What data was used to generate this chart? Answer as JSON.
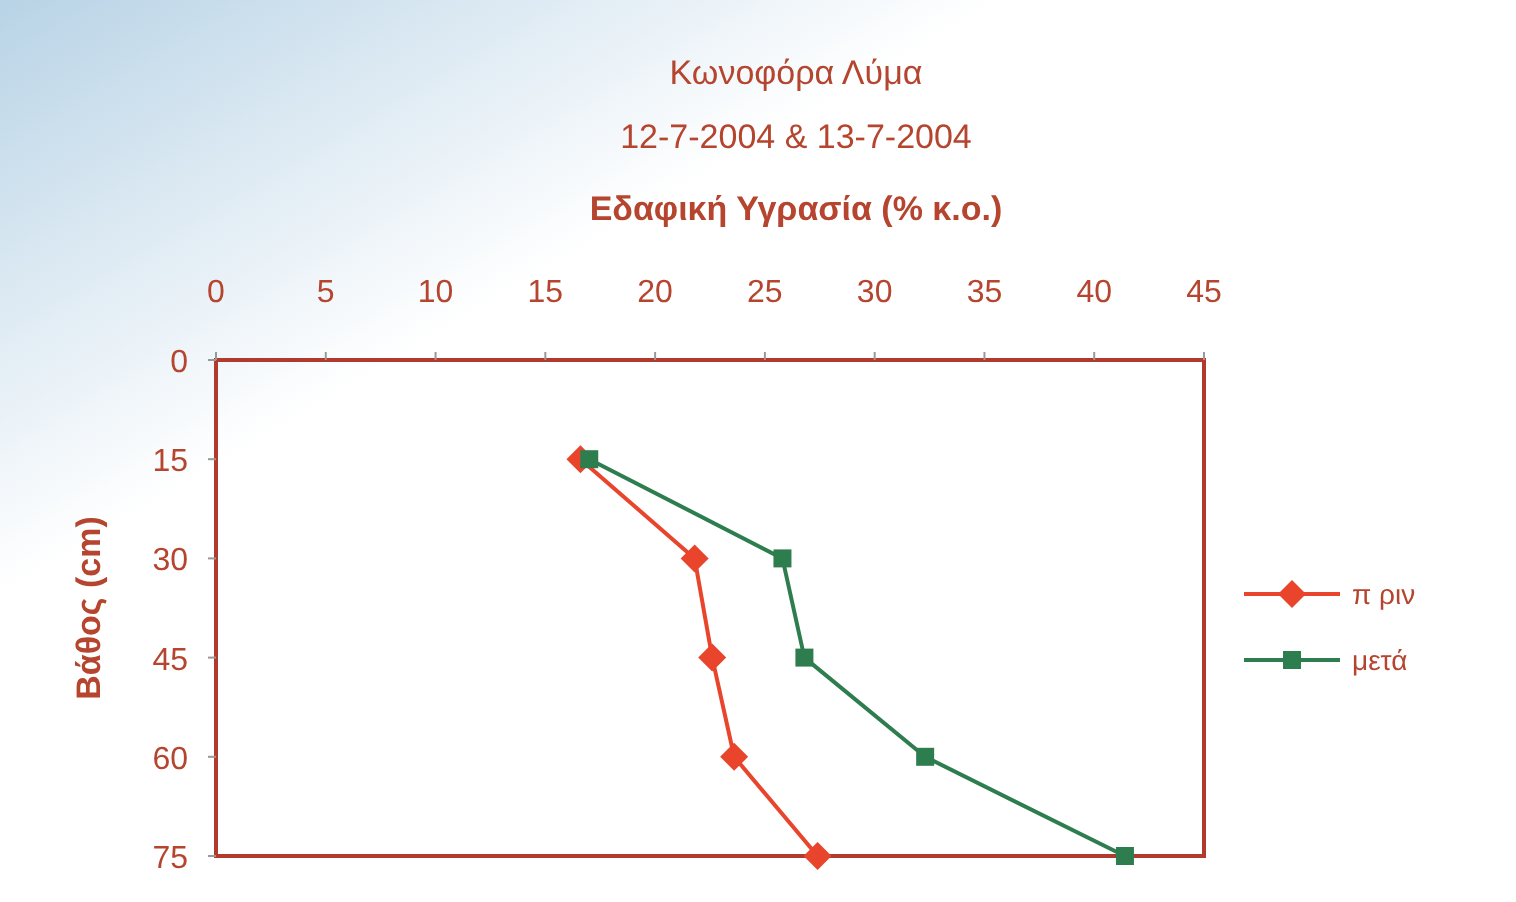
{
  "chart_data": {
    "type": "line",
    "title": "Κωνοφόρα Λύμα",
    "subtitle": "12-7-2004 & 13-7-2004",
    "xlabel": "Εδαφική Υγρασία (% κ.ο.)",
    "ylabel": "Βάθος (cm)",
    "xlim": [
      0,
      45
    ],
    "xticks": [
      0,
      5,
      10,
      15,
      20,
      25,
      30,
      35,
      40,
      45
    ],
    "ylim": [
      75,
      0
    ],
    "yticks": [
      0,
      15,
      30,
      45,
      60,
      75
    ],
    "grid": false,
    "legend": "right",
    "series": [
      {
        "name": "π ριν",
        "color": "#e8452c",
        "marker": "diamond",
        "x": [
          16.6,
          21.8,
          22.6,
          23.6,
          27.4
        ],
        "values": [
          15,
          30,
          45,
          60,
          75
        ]
      },
      {
        "name": "μετά",
        "color": "#2e7d4f",
        "marker": "square",
        "x": [
          17.0,
          25.8,
          26.8,
          32.3,
          41.4
        ],
        "values": [
          15,
          30,
          45,
          60,
          75
        ]
      }
    ]
  }
}
